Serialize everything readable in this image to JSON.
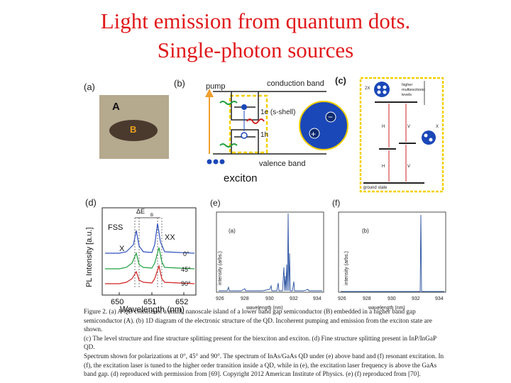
{
  "slide": {
    "title_line1": "Light emission from quantum dots.",
    "title_line2": "Single-photon sources"
  },
  "panel_a": {
    "label": "(a)",
    "outer": "A",
    "inner": "B"
  },
  "panel_b": {
    "label": "(b)",
    "pump": "pump",
    "conduction_band": "conduction band",
    "electron_level": "1e (s-shell)",
    "hole_level": "1h",
    "valence_band": "valence band",
    "exciton": "exciton",
    "minus": "−",
    "plus": "+"
  },
  "panel_c": {
    "label": "(c)",
    "state_2x": "2X",
    "higher_line1": "higher",
    "higher_line2": "multiexcitonic",
    "higher_line3": "levels",
    "x_label": "X",
    "h_left": "H",
    "v_left": "V",
    "h_right": "H",
    "v_right": "V",
    "ground": "ground state"
  },
  "panel_d": {
    "label": "(d)",
    "ylabel": "PL Intensity [a.u.]",
    "xlabel": "Wavelength (nm)",
    "ticks": [
      "650",
      "651",
      "652"
    ],
    "delta_e": "ΔE",
    "delta_sub": "B",
    "fss": "FSS",
    "x": "X",
    "xx": "XX",
    "ang0": "0°",
    "ang45": "45°",
    "ang90": "90°"
  },
  "panel_e": {
    "label": "(e)",
    "inner_label": "(a)",
    "ylabel": "intensity (arbs.)",
    "xlabel": "wavelength (nm)",
    "ticks": [
      "926",
      "928",
      "930",
      "932",
      "934"
    ]
  },
  "panel_f": {
    "label": "(f)",
    "inner_label": "(b)",
    "ylabel": "intensity (arbs.)",
    "xlabel": "wavelength (nm)",
    "ticks": [
      "926",
      "928",
      "930",
      "932",
      "934"
    ]
  },
  "caption": {
    "line1": "Figure 2. (a) A QD consists of a small, nanoscale island of a lower band gap semiconductor (B) embedded in a higher band gap",
    "line2": "semiconductor (A). (b) 1D diagram of the electronic structure of the QD. Incoherent pumping and emission from the exciton state are shown.",
    "line3": "(c) The level structure and fine structure splitting present for the biexciton and exciton. (d) Fine structure splitting present in InP/InGaP QD.",
    "line4": "Spectrum shown for polarizations at 0°, 45° and 90°. The spectrum of InAs/GaAs QD under (e) above band and (f) resonant excitation. In",
    "line5": "(f), the excitation laser is tuned to the higher order transition inside a QD, while in (e), the excitation laser frequency is above the GaAs",
    "line6": "band gap. (d) reproduced with permission from [69]. Copyright 2012 American Institute of Physics. (e) (f) reproduced from [70]."
  },
  "colors": {
    "title": "#e0191b",
    "qd_background": "#b5a98e",
    "qd_island": "#4a3a2e",
    "qd_label": "#e8a020",
    "dot_blue": "#1b48b8",
    "highlight_yellow": "#f5d000",
    "pump_orange": "#f0a030",
    "spectrum_blue": "#2850a0",
    "trace_blue": "#3050c0",
    "trace_green": "#20a040",
    "trace_red": "#d02020"
  }
}
